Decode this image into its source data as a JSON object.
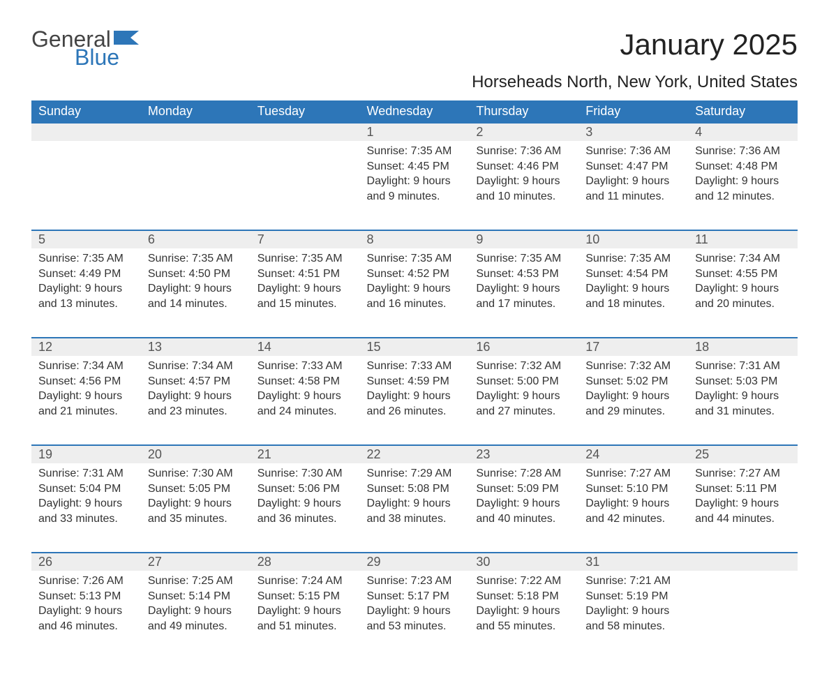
{
  "logo": {
    "text_general": "General",
    "text_blue": "Blue",
    "flag_color": "#2d76b8"
  },
  "title": "January 2025",
  "subtitle": "Horseheads North, New York, United States",
  "colors": {
    "header_bg": "#2d76b8",
    "header_text": "#ffffff",
    "daynum_bg": "#eeeeee",
    "border": "#2d76b8",
    "body_text": "#333333"
  },
  "day_labels": [
    "Sunday",
    "Monday",
    "Tuesday",
    "Wednesday",
    "Thursday",
    "Friday",
    "Saturday"
  ],
  "weeks": [
    [
      {
        "n": "",
        "lines": []
      },
      {
        "n": "",
        "lines": []
      },
      {
        "n": "",
        "lines": []
      },
      {
        "n": "1",
        "lines": [
          "Sunrise: 7:35 AM",
          "Sunset: 4:45 PM",
          "Daylight: 9 hours and 9 minutes."
        ]
      },
      {
        "n": "2",
        "lines": [
          "Sunrise: 7:36 AM",
          "Sunset: 4:46 PM",
          "Daylight: 9 hours and 10 minutes."
        ]
      },
      {
        "n": "3",
        "lines": [
          "Sunrise: 7:36 AM",
          "Sunset: 4:47 PM",
          "Daylight: 9 hours and 11 minutes."
        ]
      },
      {
        "n": "4",
        "lines": [
          "Sunrise: 7:36 AM",
          "Sunset: 4:48 PM",
          "Daylight: 9 hours and 12 minutes."
        ]
      }
    ],
    [
      {
        "n": "5",
        "lines": [
          "Sunrise: 7:35 AM",
          "Sunset: 4:49 PM",
          "Daylight: 9 hours and 13 minutes."
        ]
      },
      {
        "n": "6",
        "lines": [
          "Sunrise: 7:35 AM",
          "Sunset: 4:50 PM",
          "Daylight: 9 hours and 14 minutes."
        ]
      },
      {
        "n": "7",
        "lines": [
          "Sunrise: 7:35 AM",
          "Sunset: 4:51 PM",
          "Daylight: 9 hours and 15 minutes."
        ]
      },
      {
        "n": "8",
        "lines": [
          "Sunrise: 7:35 AM",
          "Sunset: 4:52 PM",
          "Daylight: 9 hours and 16 minutes."
        ]
      },
      {
        "n": "9",
        "lines": [
          "Sunrise: 7:35 AM",
          "Sunset: 4:53 PM",
          "Daylight: 9 hours and 17 minutes."
        ]
      },
      {
        "n": "10",
        "lines": [
          "Sunrise: 7:35 AM",
          "Sunset: 4:54 PM",
          "Daylight: 9 hours and 18 minutes."
        ]
      },
      {
        "n": "11",
        "lines": [
          "Sunrise: 7:34 AM",
          "Sunset: 4:55 PM",
          "Daylight: 9 hours and 20 minutes."
        ]
      }
    ],
    [
      {
        "n": "12",
        "lines": [
          "Sunrise: 7:34 AM",
          "Sunset: 4:56 PM",
          "Daylight: 9 hours and 21 minutes."
        ]
      },
      {
        "n": "13",
        "lines": [
          "Sunrise: 7:34 AM",
          "Sunset: 4:57 PM",
          "Daylight: 9 hours and 23 minutes."
        ]
      },
      {
        "n": "14",
        "lines": [
          "Sunrise: 7:33 AM",
          "Sunset: 4:58 PM",
          "Daylight: 9 hours and 24 minutes."
        ]
      },
      {
        "n": "15",
        "lines": [
          "Sunrise: 7:33 AM",
          "Sunset: 4:59 PM",
          "Daylight: 9 hours and 26 minutes."
        ]
      },
      {
        "n": "16",
        "lines": [
          "Sunrise: 7:32 AM",
          "Sunset: 5:00 PM",
          "Daylight: 9 hours and 27 minutes."
        ]
      },
      {
        "n": "17",
        "lines": [
          "Sunrise: 7:32 AM",
          "Sunset: 5:02 PM",
          "Daylight: 9 hours and 29 minutes."
        ]
      },
      {
        "n": "18",
        "lines": [
          "Sunrise: 7:31 AM",
          "Sunset: 5:03 PM",
          "Daylight: 9 hours and 31 minutes."
        ]
      }
    ],
    [
      {
        "n": "19",
        "lines": [
          "Sunrise: 7:31 AM",
          "Sunset: 5:04 PM",
          "Daylight: 9 hours and 33 minutes."
        ]
      },
      {
        "n": "20",
        "lines": [
          "Sunrise: 7:30 AM",
          "Sunset: 5:05 PM",
          "Daylight: 9 hours and 35 minutes."
        ]
      },
      {
        "n": "21",
        "lines": [
          "Sunrise: 7:30 AM",
          "Sunset: 5:06 PM",
          "Daylight: 9 hours and 36 minutes."
        ]
      },
      {
        "n": "22",
        "lines": [
          "Sunrise: 7:29 AM",
          "Sunset: 5:08 PM",
          "Daylight: 9 hours and 38 minutes."
        ]
      },
      {
        "n": "23",
        "lines": [
          "Sunrise: 7:28 AM",
          "Sunset: 5:09 PM",
          "Daylight: 9 hours and 40 minutes."
        ]
      },
      {
        "n": "24",
        "lines": [
          "Sunrise: 7:27 AM",
          "Sunset: 5:10 PM",
          "Daylight: 9 hours and 42 minutes."
        ]
      },
      {
        "n": "25",
        "lines": [
          "Sunrise: 7:27 AM",
          "Sunset: 5:11 PM",
          "Daylight: 9 hours and 44 minutes."
        ]
      }
    ],
    [
      {
        "n": "26",
        "lines": [
          "Sunrise: 7:26 AM",
          "Sunset: 5:13 PM",
          "Daylight: 9 hours and 46 minutes."
        ]
      },
      {
        "n": "27",
        "lines": [
          "Sunrise: 7:25 AM",
          "Sunset: 5:14 PM",
          "Daylight: 9 hours and 49 minutes."
        ]
      },
      {
        "n": "28",
        "lines": [
          "Sunrise: 7:24 AM",
          "Sunset: 5:15 PM",
          "Daylight: 9 hours and 51 minutes."
        ]
      },
      {
        "n": "29",
        "lines": [
          "Sunrise: 7:23 AM",
          "Sunset: 5:17 PM",
          "Daylight: 9 hours and 53 minutes."
        ]
      },
      {
        "n": "30",
        "lines": [
          "Sunrise: 7:22 AM",
          "Sunset: 5:18 PM",
          "Daylight: 9 hours and 55 minutes."
        ]
      },
      {
        "n": "31",
        "lines": [
          "Sunrise: 7:21 AM",
          "Sunset: 5:19 PM",
          "Daylight: 9 hours and 58 minutes."
        ]
      },
      {
        "n": "",
        "lines": []
      }
    ]
  ]
}
